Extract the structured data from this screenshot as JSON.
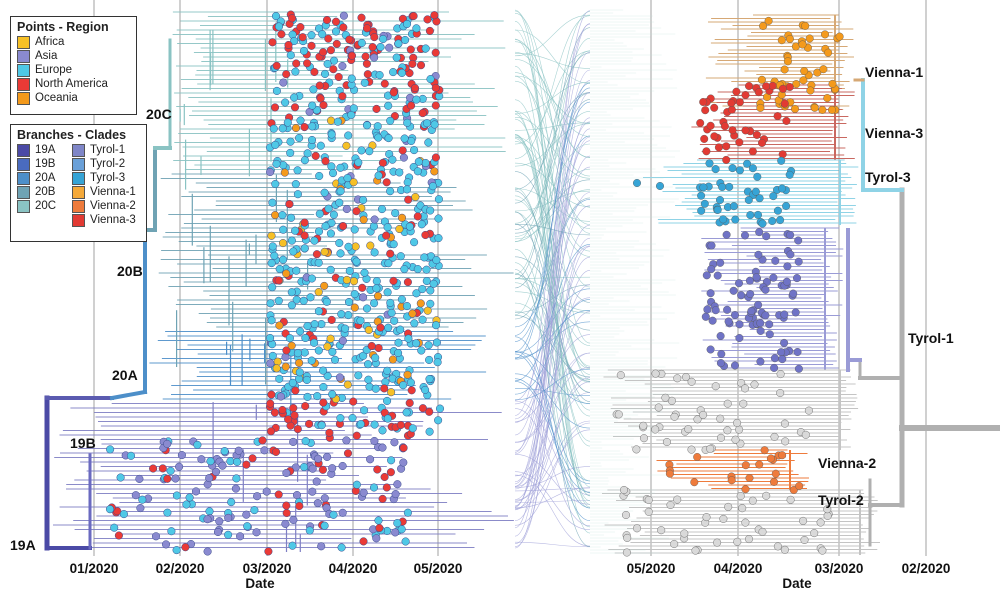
{
  "legend_points": {
    "title": "Points - Region",
    "items": [
      {
        "label": "Africa",
        "color": "#f6c026"
      },
      {
        "label": "Asia",
        "color": "#8a8ad0"
      },
      {
        "label": "Europe",
        "color": "#4fc8e6"
      },
      {
        "label": "North America",
        "color": "#ea3a36"
      },
      {
        "label": "Oceania",
        "color": "#f49a1c"
      }
    ]
  },
  "legend_branches": {
    "title": "Branches - Clades",
    "col1": [
      {
        "label": "19A",
        "color": "#4b4aa6"
      },
      {
        "label": "19B",
        "color": "#4a6bbf"
      },
      {
        "label": "20A",
        "color": "#4d8fc9"
      },
      {
        "label": "20B",
        "color": "#6fa3b4"
      },
      {
        "label": "20C",
        "color": "#8ac3c3"
      }
    ],
    "col2": [
      {
        "label": "Tyrol-1",
        "color": "#7f86c8"
      },
      {
        "label": "Tyrol-2",
        "color": "#6aa0d8"
      },
      {
        "label": "Tyrol-3",
        "color": "#36a4d6"
      },
      {
        "label": "Vienna-1",
        "color": "#f4a93a"
      },
      {
        "label": "Vienna-2",
        "color": "#ee7b3c"
      },
      {
        "label": "Vienna-3",
        "color": "#e23a33"
      }
    ]
  },
  "left_tree": {
    "axis_label": "Date",
    "ticks": [
      "01/2020",
      "02/2020",
      "03/2020",
      "04/2020",
      "05/2020"
    ],
    "clade_labels": [
      "20C",
      "20B",
      "20A",
      "19B",
      "19A"
    ]
  },
  "right_tree": {
    "axis_label": "Date",
    "ticks": [
      "05/2020",
      "04/2020",
      "03/2020",
      "02/2020"
    ],
    "cluster_labels": [
      "Vienna-1",
      "Vienna-3",
      "Tyrol-3",
      "Tyrol-1",
      "Vienna-2",
      "Tyrol-2"
    ]
  }
}
